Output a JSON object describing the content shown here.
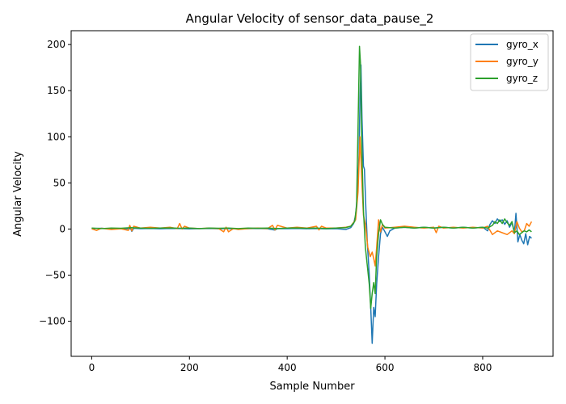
{
  "chart_data": {
    "type": "line",
    "title": "Angular Velocity of sensor_data_pause_2",
    "xlabel": "Sample Number",
    "ylabel": "Angular Velocity",
    "xlim": [
      -42,
      944
    ],
    "ylim": [
      -138,
      215
    ],
    "xticks": [
      0,
      200,
      400,
      600,
      800
    ],
    "yticks": [
      -100,
      -50,
      0,
      50,
      100,
      150,
      200
    ],
    "ytick_labels": [
      "−100",
      "−50",
      "0",
      "50",
      "100",
      "150",
      "200"
    ],
    "legend_position": "upper-right",
    "grid": false,
    "series": [
      {
        "name": "gyro_x",
        "color": "#1f77b4",
        "points": [
          [
            0,
            0.5
          ],
          [
            20,
            0.8
          ],
          [
            40,
            0.3
          ],
          [
            60,
            0.6
          ],
          [
            80,
            0.2
          ],
          [
            82,
            -2.5
          ],
          [
            86,
            0.8
          ],
          [
            100,
            0.4
          ],
          [
            120,
            0.7
          ],
          [
            140,
            0.3
          ],
          [
            160,
            0.6
          ],
          [
            180,
            0.5
          ],
          [
            200,
            0.2
          ],
          [
            220,
            0.4
          ],
          [
            240,
            0.6
          ],
          [
            260,
            0.3
          ],
          [
            280,
            0.5
          ],
          [
            300,
            0.2
          ],
          [
            320,
            0.4
          ],
          [
            340,
            0.6
          ],
          [
            360,
            0.3
          ],
          [
            375,
            -1.2
          ],
          [
            380,
            0.5
          ],
          [
            400,
            0.4
          ],
          [
            420,
            0.7
          ],
          [
            440,
            0.3
          ],
          [
            460,
            0.5
          ],
          [
            480,
            0.2
          ],
          [
            500,
            0.4
          ],
          [
            520,
            -0.5
          ],
          [
            530,
            1.5
          ],
          [
            536,
            6
          ],
          [
            540,
            15
          ],
          [
            544,
            40
          ],
          [
            547,
            80
          ],
          [
            549,
            140
          ],
          [
            551,
            178
          ],
          [
            553,
            120
          ],
          [
            556,
            68
          ],
          [
            558,
            65
          ],
          [
            561,
            22
          ],
          [
            564,
            -15
          ],
          [
            568,
            -50
          ],
          [
            571,
            -85
          ],
          [
            574,
            -124
          ],
          [
            577,
            -85
          ],
          [
            580,
            -95
          ],
          [
            583,
            -60
          ],
          [
            587,
            -30
          ],
          [
            591,
            -5
          ],
          [
            595,
            2
          ],
          [
            600,
            -3
          ],
          [
            605,
            -8
          ],
          [
            610,
            -2
          ],
          [
            620,
            1
          ],
          [
            640,
            2
          ],
          [
            660,
            1
          ],
          [
            680,
            2
          ],
          [
            700,
            1
          ],
          [
            720,
            2
          ],
          [
            740,
            1
          ],
          [
            760,
            2
          ],
          [
            780,
            1
          ],
          [
            800,
            2
          ],
          [
            810,
            -2
          ],
          [
            815,
            5
          ],
          [
            820,
            9
          ],
          [
            825,
            6
          ],
          [
            830,
            11
          ],
          [
            835,
            8
          ],
          [
            840,
            10
          ],
          [
            845,
            5
          ],
          [
            850,
            9
          ],
          [
            855,
            2
          ],
          [
            860,
            7
          ],
          [
            865,
            -4
          ],
          [
            868,
            17
          ],
          [
            872,
            -14
          ],
          [
            876,
            -6
          ],
          [
            880,
            -12
          ],
          [
            884,
            -16
          ],
          [
            888,
            -5
          ],
          [
            892,
            -17
          ],
          [
            896,
            -8
          ],
          [
            900,
            -10
          ]
        ]
      },
      {
        "name": "gyro_y",
        "color": "#ff7f0e",
        "points": [
          [
            0,
            0.2
          ],
          [
            10,
            -1.5
          ],
          [
            20,
            0.8
          ],
          [
            40,
            -0.5
          ],
          [
            60,
            0.3
          ],
          [
            75,
            -1.5
          ],
          [
            78,
            4
          ],
          [
            82,
            -2
          ],
          [
            86,
            3
          ],
          [
            100,
            1
          ],
          [
            120,
            2
          ],
          [
            140,
            1
          ],
          [
            160,
            2
          ],
          [
            175,
            0.5
          ],
          [
            180,
            6
          ],
          [
            185,
            0
          ],
          [
            190,
            3
          ],
          [
            200,
            1
          ],
          [
            220,
            0.5
          ],
          [
            240,
            1
          ],
          [
            260,
            0.5
          ],
          [
            270,
            -3
          ],
          [
            275,
            2
          ],
          [
            280,
            -3
          ],
          [
            290,
            0.5
          ],
          [
            300,
            -0.5
          ],
          [
            320,
            0.5
          ],
          [
            340,
            1
          ],
          [
            360,
            0.5
          ],
          [
            370,
            4
          ],
          [
            375,
            -1
          ],
          [
            380,
            4
          ],
          [
            400,
            1
          ],
          [
            420,
            2
          ],
          [
            440,
            1
          ],
          [
            460,
            3
          ],
          [
            465,
            -1
          ],
          [
            470,
            3
          ],
          [
            480,
            1
          ],
          [
            500,
            1
          ],
          [
            520,
            2
          ],
          [
            530,
            3
          ],
          [
            540,
            10
          ],
          [
            545,
            40
          ],
          [
            549,
            100
          ],
          [
            552,
            60
          ],
          [
            556,
            15
          ],
          [
            560,
            5
          ],
          [
            565,
            -20
          ],
          [
            570,
            -30
          ],
          [
            574,
            -25
          ],
          [
            577,
            -32
          ],
          [
            580,
            -40
          ],
          [
            583,
            -20
          ],
          [
            587,
            10
          ],
          [
            591,
            -3
          ],
          [
            595,
            5
          ],
          [
            600,
            1
          ],
          [
            620,
            2
          ],
          [
            640,
            3
          ],
          [
            660,
            2
          ],
          [
            680,
            1
          ],
          [
            700,
            2
          ],
          [
            705,
            -4
          ],
          [
            710,
            3
          ],
          [
            720,
            1
          ],
          [
            740,
            2
          ],
          [
            760,
            1
          ],
          [
            780,
            2
          ],
          [
            800,
            1
          ],
          [
            810,
            3
          ],
          [
            820,
            -6
          ],
          [
            830,
            -2
          ],
          [
            840,
            -4
          ],
          [
            850,
            -6
          ],
          [
            860,
            -2
          ],
          [
            865,
            -5
          ],
          [
            870,
            8
          ],
          [
            875,
            1
          ],
          [
            880,
            -3
          ],
          [
            885,
            -2
          ],
          [
            890,
            6
          ],
          [
            895,
            3
          ],
          [
            900,
            8
          ]
        ]
      },
      {
        "name": "gyro_z",
        "color": "#2ca02c",
        "points": [
          [
            0,
            1
          ],
          [
            20,
            0.5
          ],
          [
            40,
            1
          ],
          [
            60,
            0.8
          ],
          [
            80,
            1.5
          ],
          [
            100,
            1
          ],
          [
            120,
            0.8
          ],
          [
            140,
            1
          ],
          [
            160,
            1.2
          ],
          [
            180,
            0.8
          ],
          [
            200,
            1
          ],
          [
            220,
            0.5
          ],
          [
            240,
            1
          ],
          [
            260,
            0.8
          ],
          [
            280,
            1
          ],
          [
            300,
            0.5
          ],
          [
            320,
            1
          ],
          [
            340,
            0.8
          ],
          [
            360,
            1
          ],
          [
            380,
            0.5
          ],
          [
            400,
            1
          ],
          [
            420,
            1.2
          ],
          [
            440,
            0.8
          ],
          [
            460,
            1
          ],
          [
            480,
            0.5
          ],
          [
            500,
            1
          ],
          [
            520,
            1.5
          ],
          [
            530,
            3
          ],
          [
            538,
            8
          ],
          [
            542,
            25
          ],
          [
            545,
            110
          ],
          [
            548,
            198
          ],
          [
            550,
            180
          ],
          [
            553,
            80
          ],
          [
            556,
            20
          ],
          [
            560,
            -20
          ],
          [
            564,
            -40
          ],
          [
            568,
            -60
          ],
          [
            571,
            -86
          ],
          [
            574,
            -70
          ],
          [
            577,
            -58
          ],
          [
            580,
            -70
          ],
          [
            583,
            -30
          ],
          [
            587,
            -5
          ],
          [
            591,
            10
          ],
          [
            595,
            5
          ],
          [
            600,
            2
          ],
          [
            620,
            1
          ],
          [
            640,
            2
          ],
          [
            660,
            1
          ],
          [
            680,
            2
          ],
          [
            700,
            1
          ],
          [
            720,
            2
          ],
          [
            740,
            1
          ],
          [
            760,
            2
          ],
          [
            780,
            1
          ],
          [
            800,
            2
          ],
          [
            810,
            1
          ],
          [
            820,
            4
          ],
          [
            825,
            8
          ],
          [
            830,
            6
          ],
          [
            835,
            10
          ],
          [
            840,
            6
          ],
          [
            845,
            11
          ],
          [
            850,
            7
          ],
          [
            855,
            4
          ],
          [
            860,
            8
          ],
          [
            865,
            -4
          ],
          [
            870,
            -2
          ],
          [
            875,
            -6
          ],
          [
            880,
            -4
          ],
          [
            885,
            -2
          ],
          [
            890,
            -3
          ],
          [
            895,
            -1
          ],
          [
            900,
            -3
          ]
        ]
      }
    ]
  }
}
